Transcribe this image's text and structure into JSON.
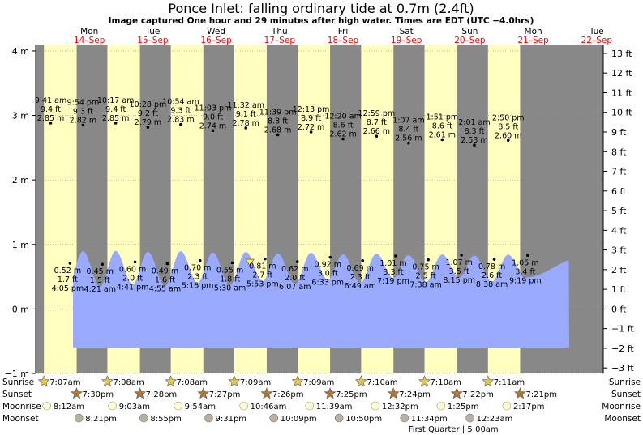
{
  "title": "Ponce Inlet: falling  ordinary tide at 0.7m (2.4ft)",
  "subtitle": "Image captured One hour and 29 minutes after high water. Times are EDT (UTC −4.0hrs)",
  "colors": {
    "night": "#888888",
    "day": "#ffffc0",
    "water": "#99aaff",
    "day_label": "#ff0000",
    "header_day": "#000000",
    "sun_star": "#e8c840",
    "sunset_star": "#b07838",
    "moonrise": "#ffffcc",
    "moonset": "#bbb0a0"
  },
  "chart_data": {
    "type": "area",
    "title": "Ponce Inlet: falling  ordinary tide at 0.7m (2.4ft)",
    "ylim_m": [
      -1,
      4.1
    ],
    "ylim_ft": [
      -3.3,
      13.3
    ],
    "y_ticks_m": [
      "4 m",
      "3 m",
      "2 m",
      "1 m",
      "0 m",
      "−1 m"
    ],
    "y_ticks_ft": [
      "13 ft",
      "12 ft",
      "11 ft",
      "10 ft",
      "9 ft",
      "8 ft",
      "7 ft",
      "6 ft",
      "5 ft",
      "4 ft",
      "3 ft",
      "2 ft",
      "1 ft",
      "0 ft",
      "−1 ft",
      "−2 ft",
      "−3 ft"
    ],
    "days": [
      {
        "dow": "Mon",
        "date": "14–Sep"
      },
      {
        "dow": "Tue",
        "date": "15–Sep"
      },
      {
        "dow": "Wed",
        "date": "16–Sep"
      },
      {
        "dow": "Thu",
        "date": "17–Sep"
      },
      {
        "dow": "Fri",
        "date": "18–Sep"
      },
      {
        "dow": "Sat",
        "date": "19–Sep"
      },
      {
        "dow": "Sun",
        "date": "20–Sep"
      },
      {
        "dow": "Mon",
        "date": "21–Sep"
      },
      {
        "dow": "Tue",
        "date": "22–Sep"
      }
    ],
    "high_tides": [
      {
        "time": "9:41 am",
        "ft": "9.4 ft",
        "m": "2.85 m",
        "t": 0.403,
        "h": 2.85
      },
      {
        "time": "9:54 pm",
        "ft": "9.3 ft",
        "m": "2.82 m",
        "t": 0.913,
        "h": 2.82
      },
      {
        "time": "10:17 am",
        "ft": "9.4 ft",
        "m": "2.85 m",
        "t": 1.428,
        "h": 2.85
      },
      {
        "time": "10:28 pm",
        "ft": "9.2 ft",
        "m": "2.79 m",
        "t": 1.936,
        "h": 2.79
      },
      {
        "time": "10:54 am",
        "ft": "9.3 ft",
        "m": "2.83 m",
        "t": 2.454,
        "h": 2.83
      },
      {
        "time": "11:03 pm",
        "ft": "9.0 ft",
        "m": "2.74 m",
        "t": 2.96,
        "h": 2.74
      },
      {
        "time": "11:32 am",
        "ft": "9.1 ft",
        "m": "2.78 m",
        "t": 3.481,
        "h": 2.78
      },
      {
        "time": "11:39 pm",
        "ft": "8.8 ft",
        "m": "2.68 m",
        "t": 3.985,
        "h": 2.68
      },
      {
        "time": "12:13 pm",
        "ft": "8.9 ft",
        "m": "2.72 m",
        "t": 4.509,
        "h": 2.72
      },
      {
        "time": "12:20 am",
        "ft": "8.6 ft",
        "m": "2.62 m",
        "t": 5.014,
        "h": 2.62
      },
      {
        "time": "12:59 pm",
        "ft": "8.7 ft",
        "m": "2.66 m",
        "t": 5.541,
        "h": 2.66
      },
      {
        "time": "1:07 am",
        "ft": "8.4 ft",
        "m": "2.56 m",
        "t": 6.047,
        "h": 2.56
      },
      {
        "time": "1:51 pm",
        "ft": "8.6 ft",
        "m": "2.61 m",
        "t": 6.577,
        "h": 2.61
      },
      {
        "time": "2:01 am",
        "ft": "8.3 ft",
        "m": "2.53 m",
        "t": 7.084,
        "h": 2.53
      },
      {
        "time": "2:50 pm",
        "ft": "8.5 ft",
        "m": "2.60 m",
        "t": 7.618,
        "h": 2.6
      }
    ],
    "low_tides": [
      {
        "m": "0.52 m",
        "ft": "1.7 ft",
        "time": "4:05 pm",
        "t": 0.67,
        "h": 0.52
      },
      {
        "m": "0.45 m",
        "ft": "1.5 ft",
        "time": "4:21 am",
        "t": 1.18,
        "h": 0.45
      },
      {
        "m": "0.60 m",
        "ft": "2.0 ft",
        "time": "4:41 pm",
        "t": 1.695,
        "h": 0.6
      },
      {
        "m": "0.49 m",
        "ft": "1.6 ft",
        "time": "4:55 am",
        "t": 2.205,
        "h": 0.49
      },
      {
        "m": "0.70 m",
        "ft": "2.3 ft",
        "time": "5:16 pm",
        "t": 2.72,
        "h": 0.7
      },
      {
        "m": "0.55 m",
        "ft": "1.8 ft",
        "time": "5:30 am",
        "t": 3.23,
        "h": 0.55
      },
      {
        "m": "0.81 m",
        "ft": "2.7 ft",
        "time": "5:53 pm",
        "t": 3.745,
        "h": 0.81
      },
      {
        "m": "0.62 m",
        "ft": "2.0 ft",
        "time": "6:07 am",
        "t": 4.255,
        "h": 0.62
      },
      {
        "m": "0.92 m",
        "ft": "3.0 ft",
        "time": "6:33 pm",
        "t": 4.773,
        "h": 0.92
      },
      {
        "m": "0.69 m",
        "ft": "2.3 ft",
        "time": "6:49 am",
        "t": 5.284,
        "h": 0.69
      },
      {
        "m": "1.01 m",
        "ft": "3.3 ft",
        "time": "7:19 pm",
        "t": 5.805,
        "h": 1.01
      },
      {
        "m": "0.75 m",
        "ft": "2.5 ft",
        "time": "7:38 am",
        "t": 6.318,
        "h": 0.75
      },
      {
        "m": "1.07 m",
        "ft": "3.5 ft",
        "time": "8:15 pm",
        "t": 6.844,
        "h": 1.07
      },
      {
        "m": "0.78 m",
        "ft": "2.6 ft",
        "time": "8:38 am",
        "t": 7.36,
        "h": 0.78
      },
      {
        "m": "1.05 m",
        "ft": "3.4 ft",
        "time": "9:19 pm",
        "t": 7.888,
        "h": 1.05
      }
    ],
    "current_level_m": 0.7,
    "sunrise": [
      "7:07am",
      "7:08am",
      "7:08am",
      "7:09am",
      "7:09am",
      "7:10am",
      "7:10am",
      "7:11am"
    ],
    "sunset": [
      "7:30pm",
      "7:28pm",
      "7:27pm",
      "7:26pm",
      "7:25pm",
      "7:24pm",
      "7:22pm",
      "7:21pm"
    ],
    "moonrise": [
      "8:12am",
      "9:03am",
      "9:54am",
      "10:46am",
      "11:39am",
      "12:32pm",
      "1:25pm",
      "2:17pm"
    ],
    "moonset": [
      "8:21pm",
      "8:55pm",
      "9:31pm",
      "10:09pm",
      "10:50pm",
      "11:34pm",
      "12:23am"
    ],
    "row_labels": {
      "sunrise": "Sunrise",
      "sunset": "Sunset",
      "moonrise": "Moonrise",
      "moonset": "Moonset"
    },
    "moon_phase": "First Quarter | 5:00am"
  }
}
